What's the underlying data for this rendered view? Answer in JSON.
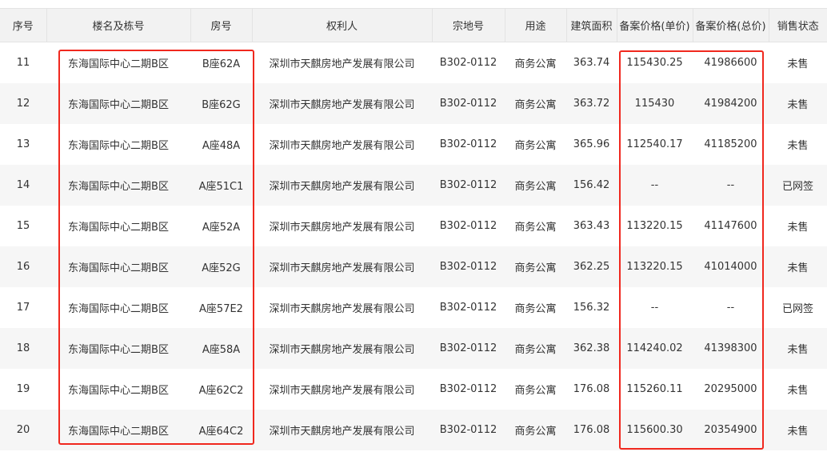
{
  "columns": [
    "序号",
    "楼名及栋号",
    "房号",
    "权利人",
    "宗地号",
    "用途",
    "建筑面积",
    "备案价格(单价)",
    "备案价格(总价)",
    "销售状态"
  ],
  "rows": [
    [
      "11",
      "东海国际中心二期B区",
      "B座62A",
      "深圳市天麒房地产发展有限公司",
      "B302-0112",
      "商务公寓",
      "363.74",
      "115430.25",
      "41986600",
      "未售"
    ],
    [
      "12",
      "东海国际中心二期B区",
      "B座62G",
      "深圳市天麒房地产发展有限公司",
      "B302-0112",
      "商务公寓",
      "363.72",
      "115430",
      "41984200",
      "未售"
    ],
    [
      "13",
      "东海国际中心二期B区",
      "A座48A",
      "深圳市天麒房地产发展有限公司",
      "B302-0112",
      "商务公寓",
      "365.96",
      "112540.17",
      "41185200",
      "未售"
    ],
    [
      "14",
      "东海国际中心二期B区",
      "A座51C1",
      "深圳市天麒房地产发展有限公司",
      "B302-0112",
      "商务公寓",
      "156.42",
      "--",
      "--",
      "已网签"
    ],
    [
      "15",
      "东海国际中心二期B区",
      "A座52A",
      "深圳市天麒房地产发展有限公司",
      "B302-0112",
      "商务公寓",
      "363.43",
      "113220.15",
      "41147600",
      "未售"
    ],
    [
      "16",
      "东海国际中心二期B区",
      "A座52G",
      "深圳市天麒房地产发展有限公司",
      "B302-0112",
      "商务公寓",
      "362.25",
      "113220.15",
      "41014000",
      "未售"
    ],
    [
      "17",
      "东海国际中心二期B区",
      "A座57E2",
      "深圳市天麒房地产发展有限公司",
      "B302-0112",
      "商务公寓",
      "156.32",
      "--",
      "--",
      "已网签"
    ],
    [
      "18",
      "东海国际中心二期B区",
      "A座58A",
      "深圳市天麒房地产发展有限公司",
      "B302-0112",
      "商务公寓",
      "362.38",
      "114240.02",
      "41398300",
      "未售"
    ],
    [
      "19",
      "东海国际中心二期B区",
      "A座62C2",
      "深圳市天麒房地产发展有限公司",
      "B302-0112",
      "商务公寓",
      "176.08",
      "115260.11",
      "20295000",
      "未售"
    ],
    [
      "20",
      "东海国际中心二期B区",
      "A座64C2",
      "深圳市天麒房地产发展有限公司",
      "B302-0112",
      "商务公寓",
      "176.08",
      "115600.30",
      "20354900",
      "未售"
    ]
  ],
  "highlight_color": "#f0281e"
}
